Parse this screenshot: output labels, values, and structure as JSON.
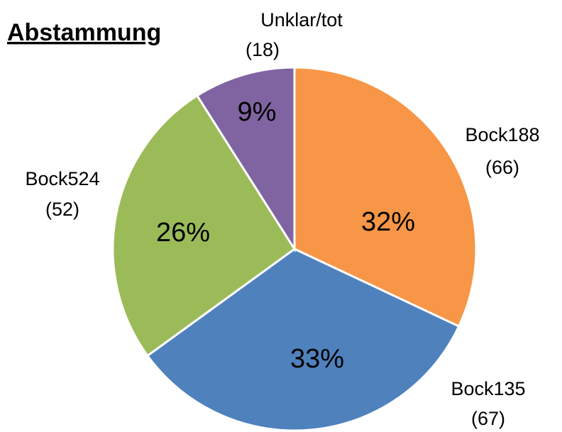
{
  "chart_data": {
    "type": "pie",
    "title": "Abstammung",
    "categories": [
      "Bock188",
      "Bock135",
      "Bock524",
      "Unklar/tot"
    ],
    "count_labels": [
      "(66)",
      "(67)",
      "(52)",
      "(18)"
    ],
    "values": [
      32,
      33,
      26,
      9
    ],
    "value_labels": [
      "32%",
      "33%",
      "26%",
      "9%"
    ],
    "colors": [
      "#f79646",
      "#4f81bd",
      "#9bbb59",
      "#8064a2"
    ]
  }
}
